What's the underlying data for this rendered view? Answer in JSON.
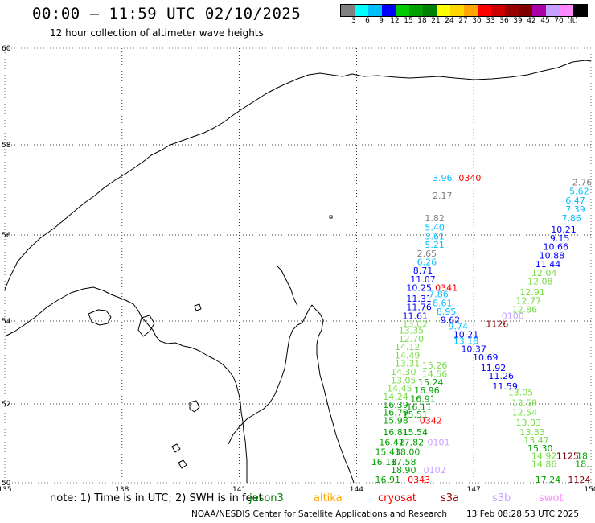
{
  "header": {
    "title": "00:00 – 11:59 UTC 02/10/2025",
    "subtitle": "12 hour collection of altimeter wave heights"
  },
  "colorbar": {
    "colors": [
      "#808080",
      "#00ffff",
      "#00bfff",
      "#0000ff",
      "#00cc00",
      "#00a000",
      "#008000",
      "#ffff00",
      "#ffd700",
      "#ffa500",
      "#ff0000",
      "#cc0000",
      "#990000",
      "#800000",
      "#aa00aa",
      "#c8a0ff",
      "#ff88ff",
      "#000000"
    ],
    "tick_labels": [
      "3",
      "6",
      "9",
      "12",
      "15",
      "18",
      "21",
      "24",
      "27",
      "30",
      "33",
      "36",
      "39",
      "42",
      "45",
      "70",
      "(ft)"
    ]
  },
  "axes": {
    "lon_labels": [
      "135",
      "138",
      "141",
      "144",
      "147",
      "150"
    ],
    "lat_labels": [
      "60",
      "58",
      "56",
      "54",
      "52",
      "50"
    ]
  },
  "chart_data": {
    "type": "scatter",
    "xlabel": "",
    "ylabel": "",
    "xlim": [
      135,
      150
    ],
    "ylim": [
      50,
      60
    ],
    "points": [
      {
        "lon": 146.2,
        "lat": 57.2,
        "t": "3.96",
        "c": "#00bfff"
      },
      {
        "lon": 146.9,
        "lat": 57.2,
        "t": "0340",
        "c": "#ff0000"
      },
      {
        "lon": 146.2,
        "lat": 56.8,
        "t": "2.17",
        "c": "#808080"
      },
      {
        "lon": 146.0,
        "lat": 56.3,
        "t": "1.82",
        "c": "#808080"
      },
      {
        "lon": 146.0,
        "lat": 56.1,
        "t": "5.40",
        "c": "#00bfff"
      },
      {
        "lon": 146.0,
        "lat": 55.9,
        "t": "3.61",
        "c": "#00bfff"
      },
      {
        "lon": 146.0,
        "lat": 55.7,
        "t": "5.21",
        "c": "#00bfff"
      },
      {
        "lon": 145.8,
        "lat": 55.5,
        "t": "2.65",
        "c": "#808080"
      },
      {
        "lon": 145.8,
        "lat": 55.3,
        "t": "6.26",
        "c": "#00bfff"
      },
      {
        "lon": 145.7,
        "lat": 55.1,
        "t": "8.71",
        "c": "#0000ff"
      },
      {
        "lon": 145.7,
        "lat": 54.9,
        "t": "11.07",
        "c": "#0000ff"
      },
      {
        "lon": 145.6,
        "lat": 54.7,
        "t": "10.25",
        "c": "#0000ff"
      },
      {
        "lon": 146.3,
        "lat": 54.7,
        "t": "0341",
        "c": "#ff0000"
      },
      {
        "lon": 146.1,
        "lat": 54.55,
        "t": "7.86",
        "c": "#00bfff"
      },
      {
        "lon": 145.6,
        "lat": 54.45,
        "t": "11.31",
        "c": "#0000ff"
      },
      {
        "lon": 146.2,
        "lat": 54.35,
        "t": "8.61",
        "c": "#00bfff"
      },
      {
        "lon": 145.6,
        "lat": 54.25,
        "t": "11.76",
        "c": "#0000ff"
      },
      {
        "lon": 146.3,
        "lat": 54.15,
        "t": "8.95",
        "c": "#00bfff"
      },
      {
        "lon": 145.5,
        "lat": 54.05,
        "t": "11.61",
        "c": "#0000ff"
      },
      {
        "lon": 146.4,
        "lat": 53.95,
        "t": "9.62",
        "c": "#0000ff"
      },
      {
        "lon": 145.5,
        "lat": 53.85,
        "t": "13.02",
        "c": "#77dd44"
      },
      {
        "lon": 146.6,
        "lat": 53.8,
        "t": "9.74",
        "c": "#00bfff"
      },
      {
        "lon": 145.4,
        "lat": 53.7,
        "t": "13.35",
        "c": "#77dd44"
      },
      {
        "lon": 146.8,
        "lat": 53.6,
        "t": "10.21",
        "c": "#0000ff"
      },
      {
        "lon": 145.4,
        "lat": 53.5,
        "t": "12.70",
        "c": "#77dd44"
      },
      {
        "lon": 146.8,
        "lat": 53.45,
        "t": "13.18",
        "c": "#00bfff"
      },
      {
        "lon": 145.3,
        "lat": 53.3,
        "t": "14.12",
        "c": "#77dd44"
      },
      {
        "lon": 147.0,
        "lat": 53.25,
        "t": "10.37",
        "c": "#0000ff"
      },
      {
        "lon": 145.3,
        "lat": 53.1,
        "t": "14.49",
        "c": "#77dd44"
      },
      {
        "lon": 147.3,
        "lat": 53.05,
        "t": "10.69",
        "c": "#0000ff"
      },
      {
        "lon": 145.3,
        "lat": 52.9,
        "t": "13.31",
        "c": "#77dd44"
      },
      {
        "lon": 146.0,
        "lat": 52.85,
        "t": "15.26",
        "c": "#77dd44"
      },
      {
        "lon": 147.5,
        "lat": 52.8,
        "t": "11.92",
        "c": "#0000ff"
      },
      {
        "lon": 145.2,
        "lat": 52.7,
        "t": "14.30",
        "c": "#77dd44"
      },
      {
        "lon": 146.0,
        "lat": 52.65,
        "t": "14.56",
        "c": "#77dd44"
      },
      {
        "lon": 147.7,
        "lat": 52.6,
        "t": "11.26",
        "c": "#0000ff"
      },
      {
        "lon": 145.2,
        "lat": 52.5,
        "t": "13.05",
        "c": "#77dd44"
      },
      {
        "lon": 145.9,
        "lat": 52.45,
        "t": "15.24",
        "c": "#00a000"
      },
      {
        "lon": 147.8,
        "lat": 52.35,
        "t": "11.59",
        "c": "#0000ff"
      },
      {
        "lon": 145.1,
        "lat": 52.3,
        "t": "14.45",
        "c": "#77dd44"
      },
      {
        "lon": 145.8,
        "lat": 52.25,
        "t": "16.96",
        "c": "#00a000"
      },
      {
        "lon": 148.2,
        "lat": 52.2,
        "t": "13.05",
        "c": "#77dd44"
      },
      {
        "lon": 145.0,
        "lat": 52.1,
        "t": "14.24",
        "c": "#77dd44"
      },
      {
        "lon": 145.7,
        "lat": 52.05,
        "t": "16.91",
        "c": "#00a000"
      },
      {
        "lon": 148.3,
        "lat": 51.95,
        "t": "13.59",
        "c": "#77dd44"
      },
      {
        "lon": 145.0,
        "lat": 51.9,
        "t": "16.39",
        "c": "#00a000"
      },
      {
        "lon": 145.6,
        "lat": 51.85,
        "t": "16.11",
        "c": "#00a000"
      },
      {
        "lon": 148.3,
        "lat": 51.7,
        "t": "12.54",
        "c": "#77dd44"
      },
      {
        "lon": 145.0,
        "lat": 51.7,
        "t": "16.79",
        "c": "#00a000"
      },
      {
        "lon": 145.5,
        "lat": 51.65,
        "t": "15.51",
        "c": "#00a000"
      },
      {
        "lon": 145.0,
        "lat": 51.5,
        "t": "15.98",
        "c": "#00a000"
      },
      {
        "lon": 145.9,
        "lat": 51.5,
        "t": "0342",
        "c": "#ff0000"
      },
      {
        "lon": 148.4,
        "lat": 51.45,
        "t": "13.03",
        "c": "#77dd44"
      },
      {
        "lon": 148.5,
        "lat": 51.2,
        "t": "13.33",
        "c": "#77dd44"
      },
      {
        "lon": 145.0,
        "lat": 51.2,
        "t": "16.81",
        "c": "#00a000"
      },
      {
        "lon": 145.5,
        "lat": 51.2,
        "t": "15.54",
        "c": "#00a000"
      },
      {
        "lon": 148.6,
        "lat": 51.0,
        "t": "13.47",
        "c": "#77dd44"
      },
      {
        "lon": 144.9,
        "lat": 50.95,
        "t": "16.42",
        "c": "#00a000"
      },
      {
        "lon": 145.4,
        "lat": 50.95,
        "t": "17.82",
        "c": "#00a000"
      },
      {
        "lon": 146.1,
        "lat": 50.95,
        "t": "0101",
        "c": "#c8a0ff"
      },
      {
        "lon": 148.7,
        "lat": 50.8,
        "t": "15.30",
        "c": "#00a000"
      },
      {
        "lon": 144.8,
        "lat": 50.7,
        "t": "15.43",
        "c": "#00a000"
      },
      {
        "lon": 145.3,
        "lat": 50.7,
        "t": "18.00",
        "c": "#00a000"
      },
      {
        "lon": 148.8,
        "lat": 50.6,
        "t": "14.92",
        "c": "#77dd44"
      },
      {
        "lon": 149.4,
        "lat": 50.6,
        "t": "1125",
        "c": "#800000"
      },
      {
        "lon": 150.1,
        "lat": 50.6,
        "t": "18",
        "c": "#00a000"
      },
      {
        "lon": 144.7,
        "lat": 50.45,
        "t": "16.18",
        "c": "#00a000"
      },
      {
        "lon": 145.2,
        "lat": 50.45,
        "t": "17.58",
        "c": "#00a000"
      },
      {
        "lon": 148.8,
        "lat": 50.4,
        "t": "14.86",
        "c": "#77dd44"
      },
      {
        "lon": 150.0,
        "lat": 50.4,
        "t": "18.",
        "c": "#00a000"
      },
      {
        "lon": 145.2,
        "lat": 50.25,
        "t": "18.90",
        "c": "#00a000"
      },
      {
        "lon": 146.0,
        "lat": 50.25,
        "t": "0102",
        "c": "#c8a0ff"
      },
      {
        "lon": 144.8,
        "lat": 50.0,
        "t": "16.91",
        "c": "#00a000"
      },
      {
        "lon": 145.6,
        "lat": 50.0,
        "t": "0343",
        "c": "#ff0000"
      },
      {
        "lon": 148.9,
        "lat": 50.0,
        "t": "17.24",
        "c": "#00a000"
      },
      {
        "lon": 149.7,
        "lat": 50.0,
        "t": "1124",
        "c": "#800000"
      },
      {
        "lon": 147.6,
        "lat": 53.85,
        "t": "1126",
        "c": "#800000"
      },
      {
        "lon": 148.0,
        "lat": 54.05,
        "t": "0100",
        "c": "#c8a0ff"
      },
      {
        "lon": 148.3,
        "lat": 54.2,
        "t": "12.86",
        "c": "#77dd44"
      },
      {
        "lon": 148.4,
        "lat": 54.4,
        "t": "12.77",
        "c": "#77dd44"
      },
      {
        "lon": 148.5,
        "lat": 54.6,
        "t": "12.91",
        "c": "#77dd44"
      },
      {
        "lon": 148.7,
        "lat": 54.85,
        "t": "12.08",
        "c": "#77dd44"
      },
      {
        "lon": 148.8,
        "lat": 55.05,
        "t": "12.04",
        "c": "#77dd44"
      },
      {
        "lon": 148.9,
        "lat": 55.25,
        "t": "11.44",
        "c": "#0000ff"
      },
      {
        "lon": 149.0,
        "lat": 55.45,
        "t": "10.88",
        "c": "#0000ff"
      },
      {
        "lon": 149.1,
        "lat": 55.65,
        "t": "10.66",
        "c": "#0000ff"
      },
      {
        "lon": 149.2,
        "lat": 55.85,
        "t": "9.15",
        "c": "#0000ff"
      },
      {
        "lon": 149.3,
        "lat": 56.05,
        "t": "10.21",
        "c": "#0000ff"
      },
      {
        "lon": 149.5,
        "lat": 56.3,
        "t": "7.86",
        "c": "#00bfff"
      },
      {
        "lon": 149.6,
        "lat": 56.5,
        "t": "7.39",
        "c": "#00bfff"
      },
      {
        "lon": 149.6,
        "lat": 56.7,
        "t": "6.47",
        "c": "#00bfff"
      },
      {
        "lon": 149.7,
        "lat": 56.9,
        "t": "5.62",
        "c": "#00bfff"
      },
      {
        "lon": 149.8,
        "lat": 57.1,
        "t": "2.76",
        "c": "#808080"
      }
    ]
  },
  "footer": {
    "note": "note: 1) Time is in UTC; 2) SWH is in feet",
    "missions": [
      {
        "name": "jason3",
        "color": "#008000"
      },
      {
        "name": "altika",
        "color": "#ffa500"
      },
      {
        "name": "cryosat",
        "color": "#ff0000"
      },
      {
        "name": "s3a",
        "color": "#990000"
      },
      {
        "name": "s3b",
        "color": "#c8a0ff"
      },
      {
        "name": "swot",
        "color": "#ff88ff"
      }
    ],
    "credit": "NOAA/NESDIS Center for Satellite Applications and Research",
    "generated": "13 Feb 08:28:53 UTC 2025"
  }
}
